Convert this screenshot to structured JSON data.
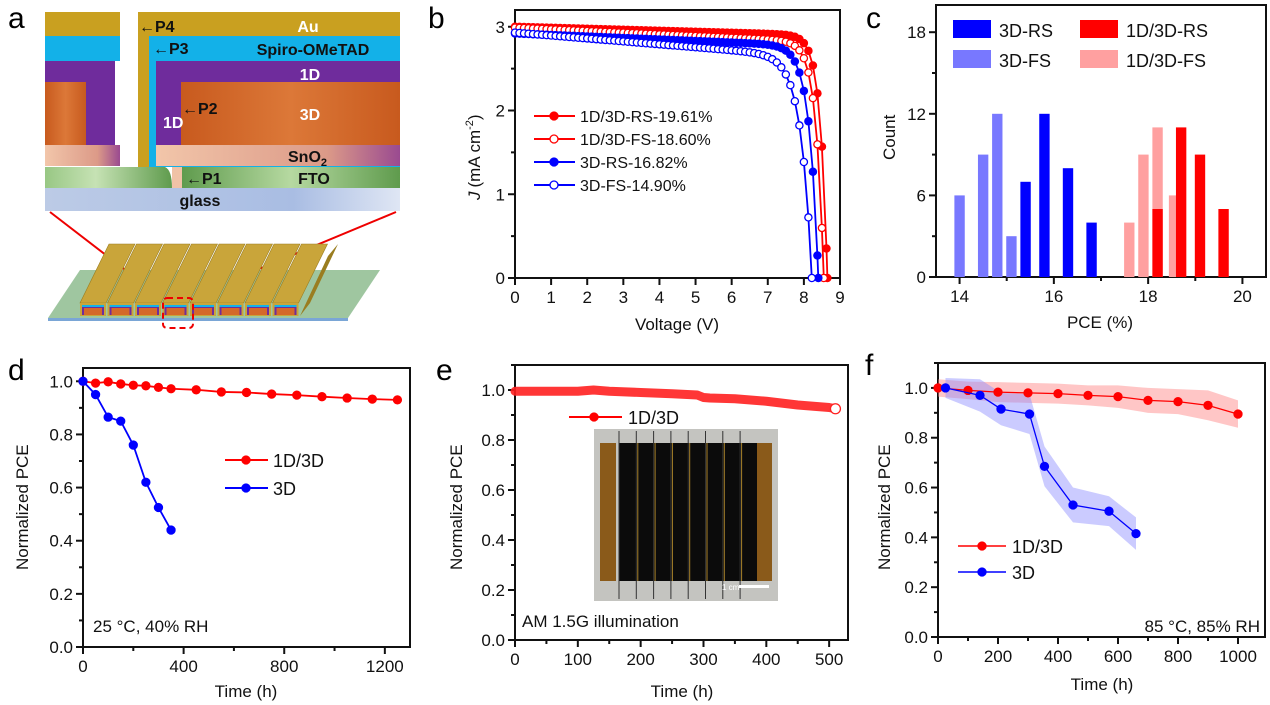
{
  "figure": {
    "panel_labels": [
      "a",
      "b",
      "c",
      "d",
      "e",
      "f"
    ]
  },
  "schematic": {
    "layers": [
      {
        "name": "Au",
        "color": "#c9a020",
        "text_color": "#ffffff"
      },
      {
        "name": "Spiro-OMeTAD",
        "color": "#13b1e8",
        "text_color": "#111111"
      },
      {
        "name": "1D",
        "color": "#6f2c9c",
        "text_color": "#ffffff"
      },
      {
        "name": "3D",
        "color": "#d4692a",
        "text_color": "#ffffff"
      },
      {
        "name": "SnO2",
        "color": "#e8a890",
        "text_color": "#111111"
      },
      {
        "name": "FTO",
        "color": "#8fc27a",
        "text_color": "#111111"
      },
      {
        "name": "glass",
        "color": "#b9c9e6",
        "text_color": "#111111"
      }
    ],
    "labels": {
      "au": "Au",
      "spiro": "Spiro-OMeTAD",
      "oneD": "1D",
      "threeD": "3D",
      "sno2_main": "SnO",
      "sno2_sub": "2",
      "fto": "FTO",
      "glass": "glass",
      "oneD_side": "1D",
      "p1": "←P1",
      "p2": "←P2",
      "p3": "←P3",
      "p4": "←P4"
    },
    "module_cells": 8
  },
  "chart_data": [
    {
      "panel": "b",
      "type": "line",
      "title": "",
      "xlabel": "Voltage (V)",
      "ylabel_main": "J",
      "ylabel_unit": "(mA cm",
      "ylabel_sup": "-2",
      "ylabel_close": ")",
      "xlim": [
        0,
        9
      ],
      "ylim": [
        0,
        3.2
      ],
      "xticks": [
        0,
        1,
        2,
        3,
        4,
        5,
        6,
        7,
        8,
        9
      ],
      "yticks": [
        0,
        1,
        2,
        3
      ],
      "legend_position": "center-left",
      "series": [
        {
          "name": "1D/3D-RS-19.61%",
          "color": "#ff0000",
          "marker": "filled",
          "Jsc": 3.0,
          "Voc": 8.65,
          "knee": 7.3,
          "sharp": 0.55,
          "slope": 0.012
        },
        {
          "name": "1D/3D-FS-18.60%",
          "color": "#ff0000",
          "marker": "open",
          "Jsc": 2.99,
          "Voc": 8.55,
          "knee": 7.0,
          "sharp": 0.6,
          "slope": 0.02
        },
        {
          "name": "3D-RS-16.82%",
          "color": "#0000ff",
          "marker": "filled",
          "Jsc": 2.92,
          "Voc": 8.4,
          "knee": 6.7,
          "sharp": 0.7,
          "slope": 0.018
        },
        {
          "name": "3D-FS-14.90%",
          "color": "#0000ff",
          "marker": "open",
          "Jsc": 2.93,
          "Voc": 8.22,
          "knee": 6.2,
          "sharp": 0.85,
          "slope": 0.035
        }
      ]
    },
    {
      "panel": "c",
      "type": "bar",
      "title": "",
      "xlabel": "PCE (%)",
      "ylabel": "Count",
      "xlim": [
        13.5,
        20.5
      ],
      "ylim": [
        0,
        20
      ],
      "xticks": [
        14,
        16,
        18,
        20
      ],
      "yticks": [
        0,
        6,
        12,
        18
      ],
      "legend_position": "top",
      "series": [
        {
          "name": "3D-RS",
          "color": "#0000ff",
          "bins": [
            15.4,
            15.8,
            16.3,
            16.8
          ],
          "values": [
            7,
            12,
            8,
            4
          ]
        },
        {
          "name": "1D/3D-RS",
          "color": "#ff0000",
          "bins": [
            18.2,
            18.7,
            19.1,
            19.6
          ],
          "values": [
            5,
            11,
            9,
            5
          ]
        },
        {
          "name": "3D-FS",
          "color": "#7878ff",
          "bins": [
            14.0,
            14.5,
            14.8,
            15.1
          ],
          "values": [
            6,
            9,
            12,
            3
          ]
        },
        {
          "name": "1D/3D-FS",
          "color": "#ffa0a0",
          "bins": [
            17.6,
            17.9,
            18.2,
            18.55
          ],
          "values": [
            4,
            9,
            11,
            6
          ]
        }
      ]
    },
    {
      "panel": "d",
      "type": "line",
      "xlabel": "Time (h)",
      "ylabel": "Normalized PCE",
      "xlim": [
        0,
        1300
      ],
      "ylim": [
        0,
        1.05
      ],
      "xticks": [
        0,
        400,
        800,
        1200
      ],
      "xminor": [
        200,
        600,
        1000
      ],
      "yticks": [
        0.0,
        0.2,
        0.4,
        0.6,
        0.8,
        1.0
      ],
      "yticklabels": [
        "0.0",
        "0.2",
        "0.4",
        "0.6",
        "0.8",
        "1.0"
      ],
      "annotation": "25 °C, 40% RH",
      "legend_position": "center-right",
      "series": [
        {
          "name": "1D/3D",
          "color": "#ff0000",
          "x": [
            0,
            50,
            100,
            150,
            200,
            250,
            300,
            350,
            450,
            550,
            650,
            750,
            850,
            950,
            1050,
            1150,
            1250
          ],
          "y": [
            1.0,
            0.993,
            0.998,
            0.99,
            0.985,
            0.983,
            0.977,
            0.972,
            0.968,
            0.96,
            0.958,
            0.952,
            0.948,
            0.942,
            0.937,
            0.933,
            0.93
          ]
        },
        {
          "name": "3D",
          "color": "#0000ff",
          "x": [
            0,
            50,
            100,
            150,
            200,
            250,
            300,
            350
          ],
          "y": [
            1.0,
            0.95,
            0.865,
            0.85,
            0.76,
            0.62,
            0.525,
            0.44
          ]
        }
      ]
    },
    {
      "panel": "e",
      "type": "line",
      "xlabel": "Time (h)",
      "ylabel": "Normalized PCE",
      "xlim": [
        0,
        530
      ],
      "ylim": [
        0,
        1.1
      ],
      "xticks": [
        0,
        100,
        200,
        300,
        400,
        500
      ],
      "yticks": [
        0.0,
        0.2,
        0.4,
        0.6,
        0.8,
        1.0
      ],
      "yticklabels": [
        "0.0",
        "0.2",
        "0.4",
        "0.6",
        "0.8",
        "1.0"
      ],
      "annotation": "AM 1.5G illumination",
      "inset_scale_label": "1 cm",
      "legend_position": "top-left",
      "series": [
        {
          "name": "1D/3D",
          "color": "#ff0000",
          "x": [
            0,
            50,
            100,
            125,
            150,
            200,
            250,
            290,
            300,
            310,
            350,
            400,
            450,
            500,
            510
          ],
          "y": [
            0.995,
            0.995,
            0.995,
            1.0,
            0.995,
            0.99,
            0.985,
            0.98,
            0.97,
            0.968,
            0.965,
            0.955,
            0.94,
            0.93,
            0.925
          ]
        }
      ]
    },
    {
      "panel": "f",
      "type": "line",
      "xlabel": "Time (h)",
      "ylabel": "Normalized PCE",
      "xlim": [
        0,
        1090
      ],
      "ylim": [
        0,
        1.1
      ],
      "xticks": [
        0,
        200,
        400,
        600,
        800,
        1000
      ],
      "yticks": [
        0.0,
        0.2,
        0.4,
        0.6,
        0.8,
        1.0
      ],
      "yticklabels": [
        "0.0",
        "0.2",
        "0.4",
        "0.6",
        "0.8",
        "1.0"
      ],
      "annotation": "85 °C, 85% RH",
      "legend_position": "bottom-left",
      "series": [
        {
          "name": "1D/3D",
          "color": "#ff0000",
          "band_color": "#ff8080",
          "x": [
            0,
            100,
            200,
            300,
            400,
            500,
            600,
            700,
            800,
            900,
            1000
          ],
          "y": [
            1.0,
            0.99,
            0.983,
            0.98,
            0.977,
            0.97,
            0.965,
            0.95,
            0.945,
            0.93,
            0.895
          ],
          "err": [
            0.035,
            0.035,
            0.04,
            0.04,
            0.04,
            0.04,
            0.045,
            0.05,
            0.05,
            0.06,
            0.055
          ]
        },
        {
          "name": "3D",
          "color": "#0000ff",
          "band_color": "#8c8cff",
          "x": [
            25,
            140,
            210,
            305,
            355,
            450,
            570,
            660
          ],
          "y": [
            1.0,
            0.97,
            0.915,
            0.895,
            0.685,
            0.53,
            0.505,
            0.415
          ],
          "err": [
            0.04,
            0.065,
            0.065,
            0.08,
            0.08,
            0.07,
            0.06,
            0.065
          ]
        }
      ]
    }
  ]
}
